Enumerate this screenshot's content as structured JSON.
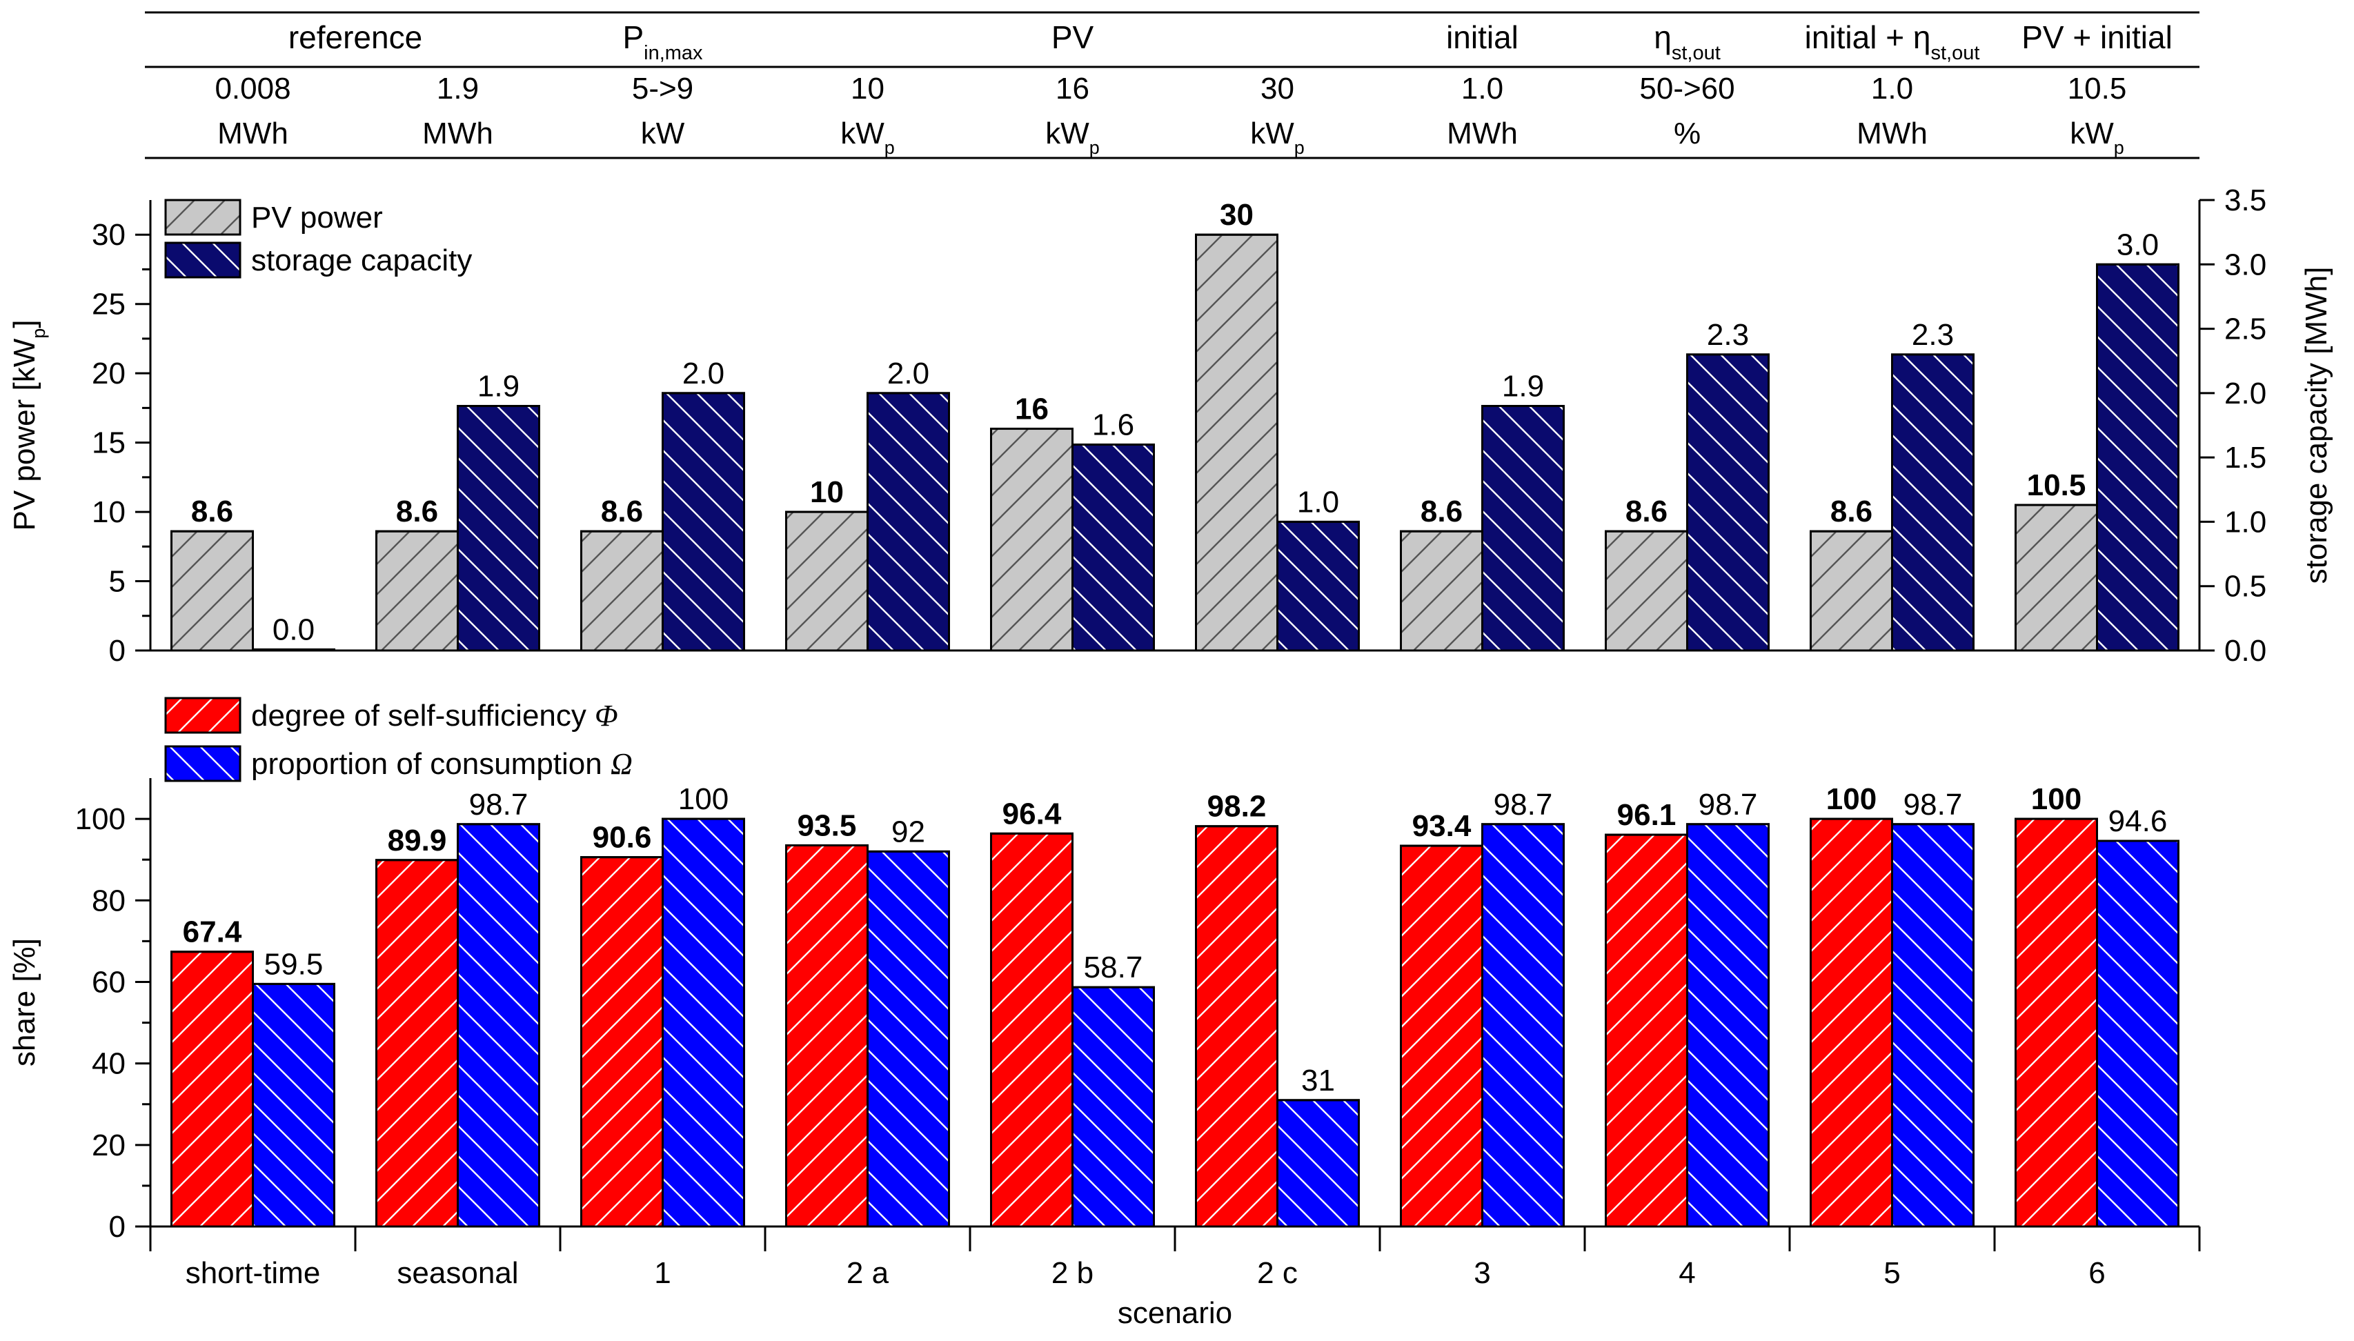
{
  "header_table": {
    "groups": [
      {
        "label": "reference"
      },
      {
        "label": "P",
        "sub": "in,max"
      },
      {
        "label": "PV"
      },
      {
        "label": "initial"
      },
      {
        "label": "η",
        "sub": "st,out"
      },
      {
        "label": "initial + η",
        "sub": "st,out"
      },
      {
        "label": "PV + initial"
      }
    ],
    "values": [
      "0.008",
      "1.9",
      "5->9",
      "10",
      "16",
      "30",
      "1.0",
      "50->60",
      "1.0",
      "10.5"
    ],
    "units": [
      {
        "label": "MWh"
      },
      {
        "label": "MWh"
      },
      {
        "label": "kW"
      },
      {
        "label": "kW",
        "sub": "p"
      },
      {
        "label": "kW",
        "sub": "p"
      },
      {
        "label": "kW",
        "sub": "p"
      },
      {
        "label": "MWh"
      },
      {
        "label": "%"
      },
      {
        "label": "MWh"
      },
      {
        "label": "kW",
        "sub": "p"
      }
    ]
  },
  "colors": {
    "pv_fill": "#c8c8c8",
    "storage_fill": "#0a0a6e",
    "self_sufficiency_fill": "#ff0000",
    "consumption_fill": "#0000ff",
    "axis": "#000000"
  },
  "chart_data": [
    {
      "type": "bar",
      "categories": [
        "short-time",
        "seasonal",
        "1",
        "2 a",
        "2 b",
        "2 c",
        "3",
        "4",
        "5",
        "6"
      ],
      "series": [
        {
          "name": "PV power",
          "axis": "left",
          "values": [
            8.6,
            8.6,
            8.6,
            10,
            16,
            30,
            8.6,
            8.6,
            8.6,
            10.5
          ],
          "labels": [
            "8.6",
            "8.6",
            "8.6",
            "10",
            "16",
            "30",
            "8.6",
            "8.6",
            "8.6",
            "10.5"
          ],
          "label_bold": true
        },
        {
          "name": "storage capacity",
          "axis": "right",
          "values": [
            0.008,
            1.9,
            2.0,
            2.0,
            1.6,
            1.0,
            1.9,
            2.3,
            2.3,
            3.0
          ],
          "labels": [
            "0.0",
            "1.9",
            "2.0",
            "2.0",
            "1.6",
            "1.0",
            "1.9",
            "2.3",
            "2.3",
            "3.0"
          ],
          "label_bold": false
        }
      ],
      "ylabel": "PV power [kW",
      "ylabel_sub": "p",
      "ylabel_end": "]",
      "ylim": [
        0,
        32.5
      ],
      "yticks": [
        0,
        5,
        10,
        15,
        20,
        25,
        30
      ],
      "y2label": "storage capacity [MWh]",
      "y2lim": [
        0,
        3.5
      ],
      "y2ticks": [
        "0.0",
        "0.5",
        "1.0",
        "1.5",
        "2.0",
        "2.5",
        "3.0",
        "3.5"
      ],
      "legend": "top-left"
    },
    {
      "type": "bar",
      "categories": [
        "short-time",
        "seasonal",
        "1",
        "2 a",
        "2 b",
        "2 c",
        "3",
        "4",
        "5",
        "6"
      ],
      "series": [
        {
          "name": "degree of self-sufficiency Φ",
          "legend_text": "degree of self-sufficiency ",
          "legend_symbol": "Φ",
          "values": [
            67.4,
            89.9,
            90.6,
            93.5,
            96.4,
            98.2,
            93.4,
            96.1,
            100,
            100
          ],
          "labels": [
            "67.4",
            "89.9",
            "90.6",
            "93.5",
            "96.4",
            "98.2",
            "93.4",
            "96.1",
            "100",
            "100"
          ],
          "label_bold": true
        },
        {
          "name": "proportion of consumption Ω",
          "legend_text": "proportion of consumption ",
          "legend_symbol": "Ω",
          "values": [
            59.5,
            98.7,
            100,
            92,
            58.7,
            31,
            98.7,
            98.7,
            98.7,
            94.6
          ],
          "labels": [
            "59.5",
            "98.7",
            "100",
            "92",
            "58.7",
            "31",
            "98.7",
            "98.7",
            "98.7",
            "94.6"
          ],
          "label_bold": false
        }
      ],
      "xlabel": "scenario",
      "ylabel": "share [%]",
      "ylim": [
        0,
        110
      ],
      "yticks": [
        0,
        20,
        40,
        60,
        80,
        100
      ],
      "legend": "top-left"
    }
  ]
}
